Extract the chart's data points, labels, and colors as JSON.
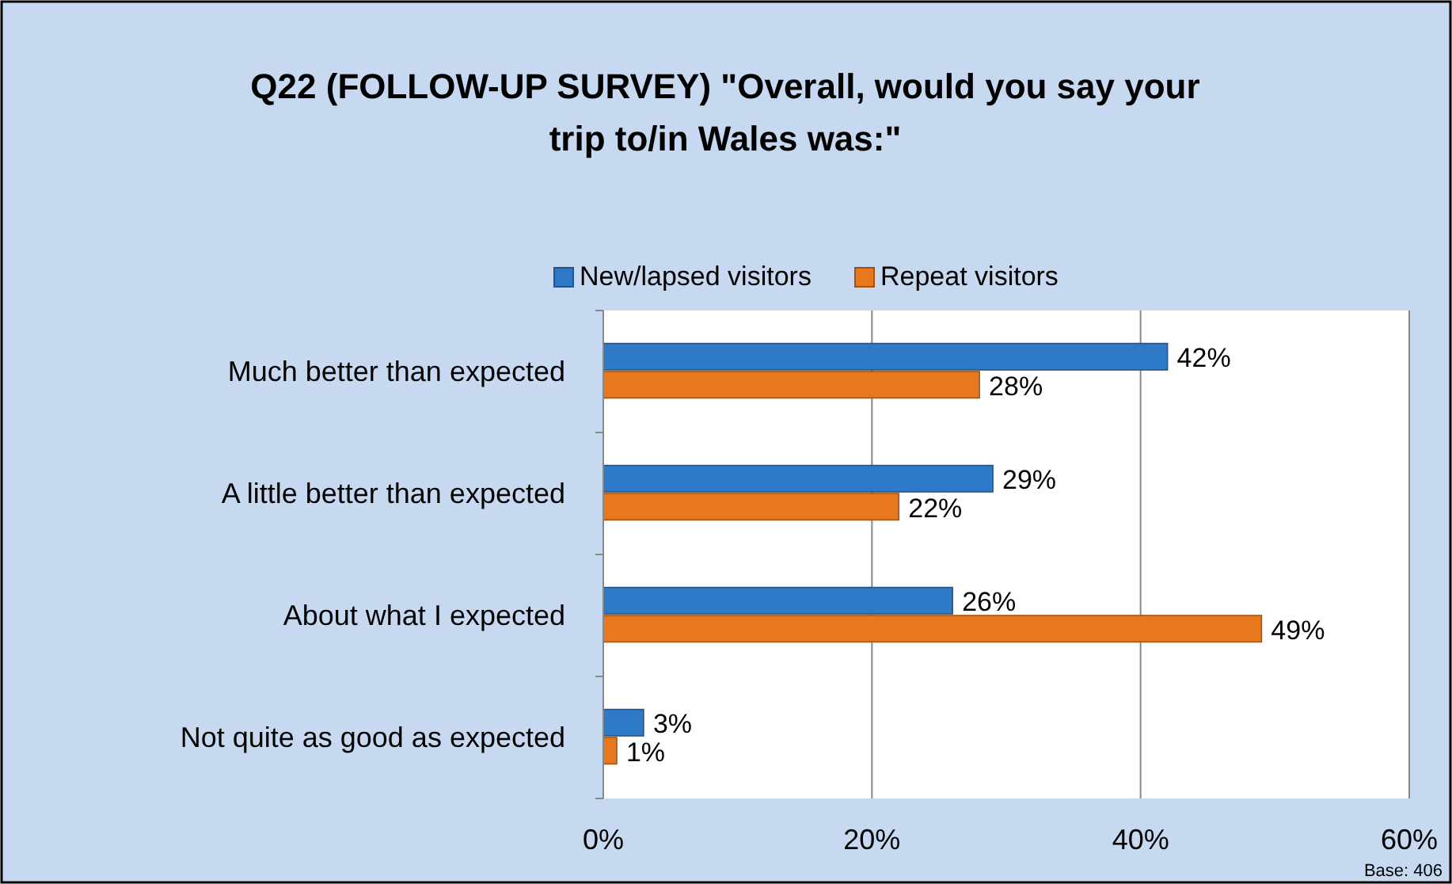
{
  "chart_data": {
    "type": "bar",
    "orientation": "horizontal",
    "title": "Q22 (FOLLOW-UP SURVEY) \"Overall, would you say your trip to/in Wales was:\"",
    "categories": [
      "Much better than expected",
      "A little better than expected",
      "About what I expected",
      "Not quite as good as expected"
    ],
    "series": [
      {
        "name": "New/lapsed visitors",
        "color": "#2f7ac8",
        "values": [
          42,
          29,
          26,
          3
        ],
        "value_labels": [
          "42%",
          "29%",
          "26%",
          "3%"
        ]
      },
      {
        "name": "Repeat visitors",
        "color": "#e7781e",
        "values": [
          28,
          22,
          49,
          1
        ],
        "value_labels": [
          "28%",
          "22%",
          "49%",
          "1%"
        ]
      }
    ],
    "xlim": [
      0,
      60
    ],
    "xticks": [
      {
        "value": 0,
        "label": "0%"
      },
      {
        "value": 20,
        "label": "20%"
      },
      {
        "value": 40,
        "label": "40%"
      },
      {
        "value": 60,
        "label": "60%"
      }
    ],
    "grid": "x",
    "legend": "top",
    "annotations": [
      "Base: 406"
    ]
  }
}
